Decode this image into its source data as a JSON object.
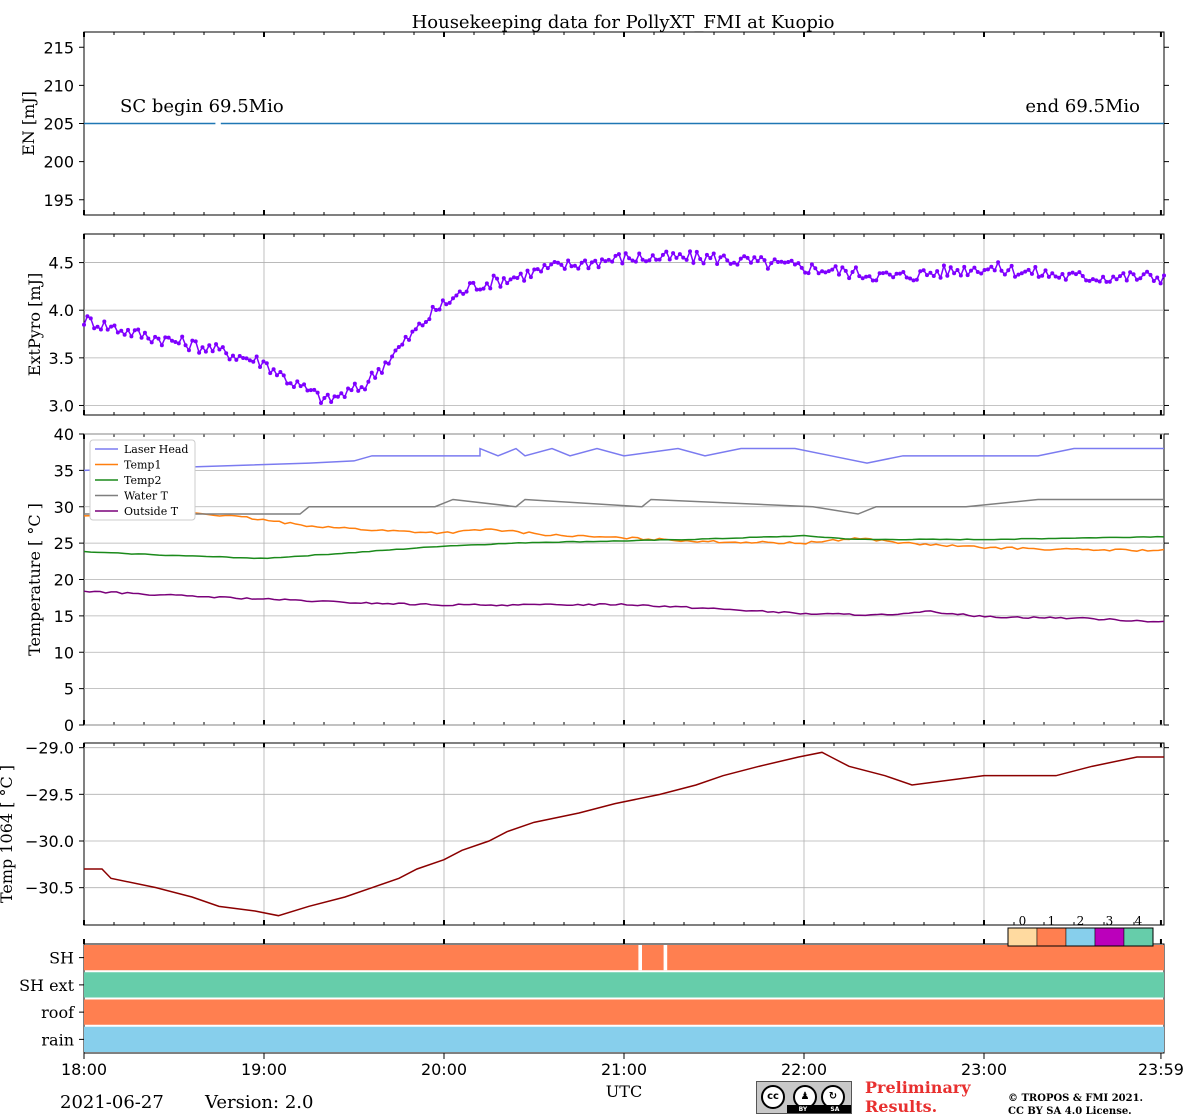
{
  "chart_data": {
    "type": "line",
    "title": "Housekeeping data for PollyXT_FMI at Kuopio",
    "xlabel": "UTC",
    "x_ticks": [
      "18:00",
      "19:00",
      "20:00",
      "21:00",
      "22:00",
      "23:00",
      "23:59"
    ],
    "x_range_hours": [
      18.0,
      24.0
    ],
    "panels": [
      {
        "id": "energy",
        "ylabel": "EN [mJ]",
        "ylim": [
          193,
          217
        ],
        "yticks": [
          "195",
          "200",
          "205",
          "210",
          "215"
        ],
        "grid": false,
        "series": [
          {
            "name": "EN",
            "color": "#1f77b4",
            "segments": [
              [
                [
                  18.0,
                  205
                ],
                [
                  18.73,
                  205
                ]
              ],
              [
                [
                  18.76,
                  205
                ],
                [
                  24.0,
                  205
                ]
              ]
            ]
          }
        ],
        "annotations": {
          "left": "SC begin 69.5Mio",
          "right": "end 69.5Mio"
        }
      },
      {
        "id": "extpyro",
        "ylabel": "ExtPyro [mJ]",
        "ylim": [
          2.9,
          4.8
        ],
        "yticks": [
          "3.0",
          "3.5",
          "4.0",
          "4.5"
        ],
        "grid": true,
        "series": [
          {
            "name": "ExtPyro",
            "color": "#7f00ff",
            "anchors": [
              [
                18.0,
                3.9
              ],
              [
                18.3,
                3.75
              ],
              [
                18.7,
                3.6
              ],
              [
                19.0,
                3.45
              ],
              [
                19.15,
                3.25
              ],
              [
                19.35,
                3.05
              ],
              [
                19.55,
                3.2
              ],
              [
                19.75,
                3.6
              ],
              [
                19.95,
                4.0
              ],
              [
                20.15,
                4.25
              ],
              [
                20.4,
                4.35
              ],
              [
                20.6,
                4.45
              ],
              [
                21.0,
                4.55
              ],
              [
                21.5,
                4.55
              ],
              [
                22.0,
                4.45
              ],
              [
                22.5,
                4.35
              ],
              [
                23.0,
                4.45
              ],
              [
                23.5,
                4.35
              ],
              [
                24.0,
                4.35
              ]
            ],
            "noise": 0.07,
            "n_points": 320
          }
        ]
      },
      {
        "id": "temperature",
        "ylabel": "Temperature [ $^\\circ C$ ]",
        "ylim": [
          0,
          40
        ],
        "yticks": [
          "0",
          "5",
          "10",
          "15",
          "20",
          "25",
          "30",
          "35",
          "40"
        ],
        "grid": true,
        "series": [
          {
            "name": "Laser Head",
            "color": "#7b7bf0",
            "steps": [
              [
                18.0,
                35
              ],
              [
                19.25,
                36
              ],
              [
                19.5,
                36.3
              ],
              [
                19.6,
                37
              ],
              [
                20.2,
                37
              ],
              [
                20.2,
                38
              ],
              [
                20.3,
                37
              ],
              [
                20.4,
                38
              ],
              [
                20.45,
                37
              ],
              [
                20.6,
                38
              ],
              [
                20.7,
                37
              ],
              [
                20.85,
                38
              ],
              [
                21.0,
                37
              ],
              [
                21.3,
                38
              ],
              [
                21.45,
                37
              ],
              [
                21.65,
                38
              ],
              [
                21.95,
                38
              ],
              [
                22.15,
                37
              ],
              [
                22.35,
                36
              ],
              [
                22.55,
                37
              ],
              [
                23.3,
                37
              ],
              [
                23.5,
                38
              ],
              [
                24.0,
                38
              ]
            ]
          },
          {
            "name": "Temp1",
            "color": "#ff7f0e",
            "anchors": [
              [
                18.0,
                28.7
              ],
              [
                18.6,
                29.2
              ],
              [
                18.9,
                28.5
              ],
              [
                19.2,
                27.5
              ],
              [
                19.6,
                26.8
              ],
              [
                20.0,
                26.4
              ],
              [
                20.25,
                26.9
              ],
              [
                20.6,
                26.1
              ],
              [
                21.0,
                25.7
              ],
              [
                21.5,
                25.2
              ],
              [
                22.0,
                25.0
              ],
              [
                22.3,
                25.7
              ],
              [
                22.6,
                24.9
              ],
              [
                23.0,
                24.4
              ],
              [
                23.5,
                24.1
              ],
              [
                24.0,
                24.0
              ]
            ],
            "noise": 0.15,
            "n_points": 200
          },
          {
            "name": "Temp2",
            "color": "#1b8a1b",
            "anchors": [
              [
                18.0,
                23.8
              ],
              [
                18.5,
                23.3
              ],
              [
                19.0,
                22.9
              ],
              [
                19.5,
                23.7
              ],
              [
                20.0,
                24.6
              ],
              [
                20.5,
                25.1
              ],
              [
                21.0,
                25.3
              ],
              [
                21.5,
                25.6
              ],
              [
                22.0,
                26.0
              ],
              [
                22.3,
                25.5
              ],
              [
                23.0,
                25.5
              ],
              [
                23.5,
                25.7
              ],
              [
                24.0,
                25.9
              ]
            ],
            "noise": 0.05,
            "n_points": 160
          },
          {
            "name": "Water T",
            "color": "#7f7f7f",
            "steps": [
              [
                18.0,
                29
              ],
              [
                19.2,
                29
              ],
              [
                19.25,
                30
              ],
              [
                19.95,
                30
              ],
              [
                20.05,
                31
              ],
              [
                20.4,
                30
              ],
              [
                20.45,
                31
              ],
              [
                21.1,
                30
              ],
              [
                21.15,
                31
              ],
              [
                22.05,
                30
              ],
              [
                22.3,
                29
              ],
              [
                22.4,
                30
              ],
              [
                22.9,
                30
              ],
              [
                23.3,
                31
              ],
              [
                24.0,
                31
              ]
            ]
          },
          {
            "name": "Outside T",
            "color": "#7a007a",
            "anchors": [
              [
                18.0,
                18.4
              ],
              [
                18.5,
                17.8
              ],
              [
                19.0,
                17.3
              ],
              [
                19.5,
                16.8
              ],
              [
                20.0,
                16.5
              ],
              [
                20.5,
                16.5
              ],
              [
                21.0,
                16.6
              ],
              [
                21.5,
                16.0
              ],
              [
                22.0,
                15.3
              ],
              [
                22.5,
                15.1
              ],
              [
                22.7,
                15.6
              ],
              [
                23.0,
                14.9
              ],
              [
                23.5,
                14.7
              ],
              [
                24.0,
                14.2
              ]
            ],
            "noise": 0.12,
            "n_points": 200
          }
        ],
        "legend": "top-left"
      },
      {
        "id": "temp1064",
        "ylabel": "Temp 1064 [ $^\\circ C$ ]",
        "ylim": [
          -30.9,
          -28.95
        ],
        "yticks": [
          "−29.0",
          "−29.5",
          "−30.0",
          "−30.5"
        ],
        "grid": true,
        "series": [
          {
            "name": "Temp 1064",
            "color": "#8b0000",
            "steps": [
              [
                18.0,
                -30.3
              ],
              [
                18.1,
                -30.3
              ],
              [
                18.15,
                -30.4
              ],
              [
                18.4,
                -30.5
              ],
              [
                18.6,
                -30.6
              ],
              [
                18.75,
                -30.7
              ],
              [
                18.95,
                -30.75
              ],
              [
                19.08,
                -30.8
              ],
              [
                19.25,
                -30.7
              ],
              [
                19.45,
                -30.6
              ],
              [
                19.6,
                -30.5
              ],
              [
                19.75,
                -30.4
              ],
              [
                19.85,
                -30.3
              ],
              [
                20.0,
                -30.2
              ],
              [
                20.1,
                -30.1
              ],
              [
                20.25,
                -30.0
              ],
              [
                20.35,
                -29.9
              ],
              [
                20.5,
                -29.8
              ],
              [
                20.75,
                -29.7
              ],
              [
                20.95,
                -29.6
              ],
              [
                21.2,
                -29.5
              ],
              [
                21.4,
                -29.4
              ],
              [
                21.55,
                -29.3
              ],
              [
                21.75,
                -29.2
              ],
              [
                21.97,
                -29.1
              ],
              [
                22.1,
                -29.05
              ],
              [
                22.15,
                -29.1
              ],
              [
                22.25,
                -29.2
              ],
              [
                22.45,
                -29.3
              ],
              [
                22.6,
                -29.4
              ],
              [
                23.0,
                -29.3
              ],
              [
                23.4,
                -29.3
              ],
              [
                23.6,
                -29.2
              ],
              [
                23.85,
                -29.1
              ],
              [
                24.0,
                -29.1
              ]
            ]
          }
        ]
      },
      {
        "id": "status",
        "type": "heatmap",
        "rows": [
          "SH",
          "SH ext",
          "roof",
          "rain"
        ],
        "row_values": [
          1,
          4,
          1,
          2
        ],
        "gaps": [
          {
            "row": 0,
            "x": [
              21.08,
              21.1
            ]
          },
          {
            "row": 0,
            "x": [
              21.22,
              21.24
            ]
          }
        ],
        "legend_values": [
          "0",
          "1",
          "2",
          "3",
          "4"
        ],
        "colors": [
          "#ffdaa0",
          "#ff7f50",
          "#87cfec",
          "#bb00bb",
          "#66cdaa"
        ]
      }
    ]
  },
  "footer": {
    "date": "2021-06-27",
    "version": "Version: 2.0",
    "preliminary": [
      "Preliminary",
      "Results."
    ],
    "copyright": [
      "© TROPOS & FMI 2021.",
      "CC BY SA 4.0 License."
    ],
    "cc_badge": {
      "by": "BY",
      "sa": "SA",
      "cc": "cc"
    }
  }
}
